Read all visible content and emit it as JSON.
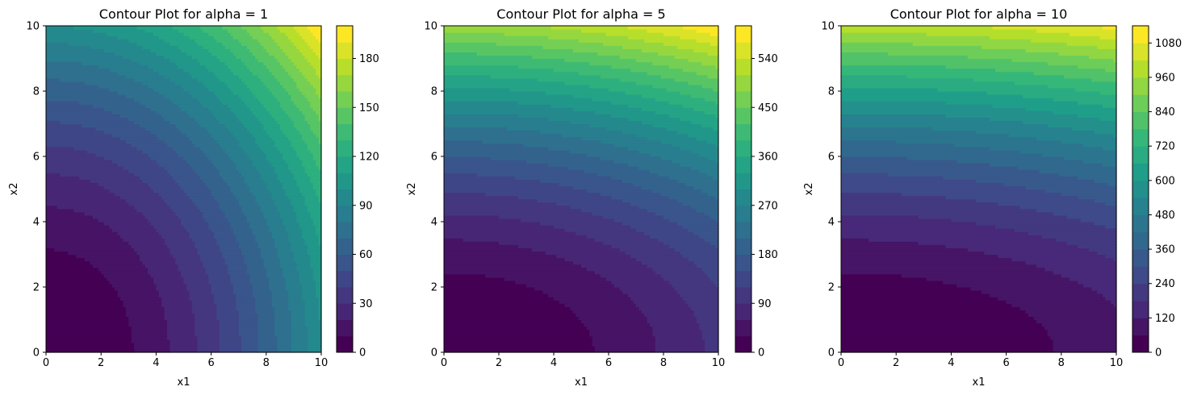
{
  "chart_data": [
    {
      "type": "contour",
      "title": "Contour Plot for alpha = 1",
      "xlabel": "x1",
      "ylabel": "x2",
      "alpha": 1,
      "xlim": [
        0,
        10
      ],
      "ylim": [
        0,
        10
      ],
      "x_ticks": [
        "0",
        "2",
        "4",
        "6",
        "8",
        "10"
      ],
      "y_ticks": [
        "0",
        "2",
        "4",
        "6",
        "8",
        "10"
      ],
      "colorbar": {
        "levels": [
          0,
          10,
          20,
          30,
          40,
          50,
          60,
          70,
          80,
          90,
          100,
          110,
          120,
          130,
          140,
          150,
          160,
          170,
          180,
          190,
          200
        ],
        "ticks": [
          "0",
          "30",
          "60",
          "90",
          "120",
          "150",
          "180"
        ]
      },
      "colormap": "viridis",
      "grid": false
    },
    {
      "type": "contour",
      "title": "Contour Plot for alpha = 5",
      "xlabel": "x1",
      "ylabel": "x2",
      "alpha": 5,
      "xlim": [
        0,
        10
      ],
      "ylim": [
        0,
        10
      ],
      "x_ticks": [
        "0",
        "2",
        "4",
        "6",
        "8",
        "10"
      ],
      "y_ticks": [
        "0",
        "2",
        "4",
        "6",
        "8",
        "10"
      ],
      "colorbar": {
        "levels": [
          0,
          30,
          60,
          90,
          120,
          150,
          180,
          210,
          240,
          270,
          300,
          330,
          360,
          390,
          420,
          450,
          480,
          510,
          540,
          570,
          600
        ],
        "ticks": [
          "0",
          "90",
          "180",
          "270",
          "360",
          "450",
          "540"
        ]
      },
      "colormap": "viridis",
      "grid": false
    },
    {
      "type": "contour",
      "title": "Contour Plot for alpha = 10",
      "xlabel": "x1",
      "ylabel": "x2",
      "alpha": 10,
      "xlim": [
        0,
        10
      ],
      "ylim": [
        0,
        10
      ],
      "x_ticks": [
        "0",
        "2",
        "4",
        "6",
        "8",
        "10"
      ],
      "y_ticks": [
        "0",
        "2",
        "4",
        "6",
        "8",
        "10"
      ],
      "colorbar": {
        "levels": [
          0,
          60,
          120,
          180,
          240,
          300,
          360,
          420,
          480,
          540,
          600,
          660,
          720,
          780,
          840,
          900,
          960,
          1020,
          1080,
          1140
        ],
        "ticks": [
          "0",
          "120",
          "240",
          "360",
          "480",
          "600",
          "720",
          "840",
          "960",
          "1080"
        ]
      },
      "colormap": "viridis",
      "grid": false
    }
  ]
}
